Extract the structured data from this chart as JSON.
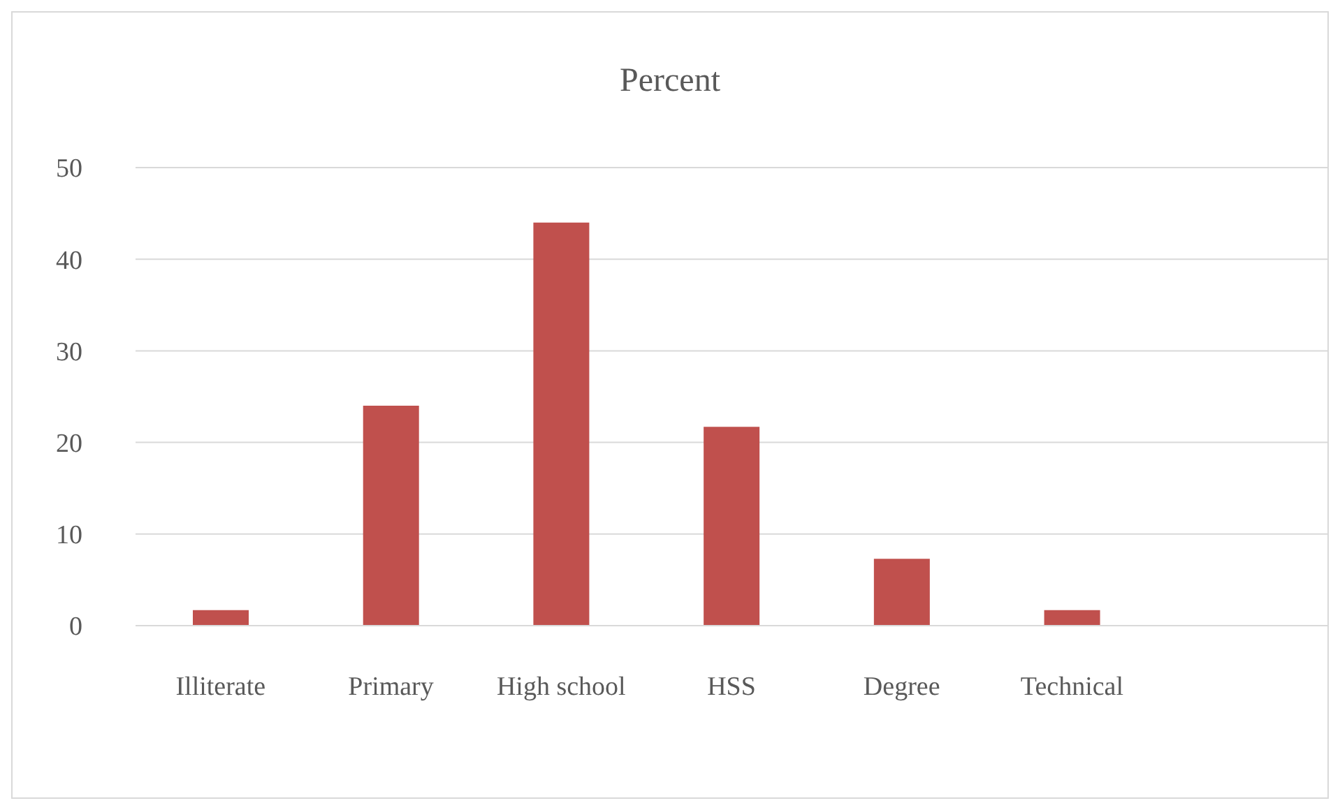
{
  "chart_data": {
    "type": "bar",
    "title": "Percent",
    "categories": [
      "Illiterate",
      "Primary",
      "High school",
      "HSS",
      "Degree",
      "Technical",
      null
    ],
    "values": [
      1.7,
      24,
      44,
      21.7,
      7.3,
      1.7,
      null
    ],
    "color": "#c0504d",
    "ylim": [
      0,
      50
    ],
    "yticks": [
      0,
      10,
      20,
      30,
      40,
      50
    ],
    "grid": "y"
  }
}
